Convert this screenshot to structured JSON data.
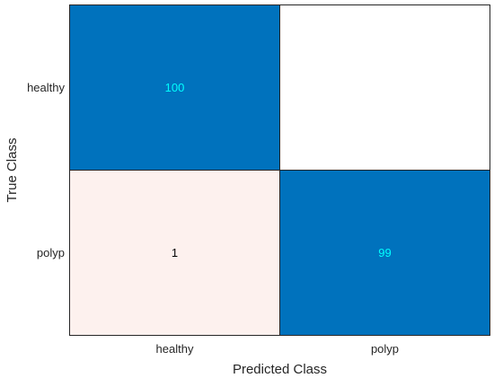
{
  "chart_data": {
    "type": "heatmap",
    "subtype": "confusion-matrix",
    "title": "",
    "xlabel": "Predicted Class",
    "ylabel": "True Class",
    "x_categories": [
      "healthy",
      "polyp"
    ],
    "y_categories": [
      "healthy",
      "polyp"
    ],
    "matrix": [
      [
        100,
        0
      ],
      [
        1,
        99
      ]
    ],
    "show_zero_labels": false,
    "colors": {
      "diagonal": "#0072bd",
      "diagonal_text": "#00ffff",
      "off_diagonal_low": "#fdf1ee",
      "off_diagonal_text": "#000000",
      "empty": "#ffffff",
      "border": "#262626"
    }
  }
}
